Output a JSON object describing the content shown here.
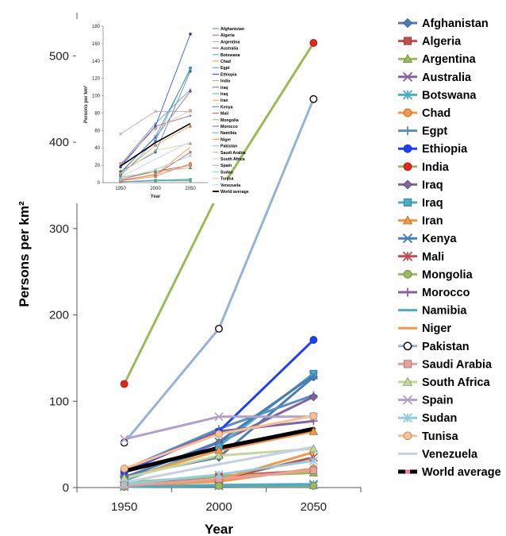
{
  "chart_data": {
    "type": "line",
    "xlabel": "Year",
    "ylabel": "Persons per km²",
    "x": [
      1950,
      2000,
      2050
    ],
    "xlim": [
      1925,
      2075
    ],
    "ylim": [
      0,
      550
    ],
    "yticks": [
      0,
      100,
      200,
      300,
      400,
      500
    ],
    "grid": false,
    "legend_position": "right",
    "series": [
      {
        "name": "Afghanistan",
        "values": [
          13,
          35,
          128
        ],
        "color": "#4a7db5",
        "marker": "diamond"
      },
      {
        "name": "Algeria",
        "values": [
          4,
          13,
          20
        ],
        "color": "#c0504d",
        "marker": "square"
      },
      {
        "name": "Argentina",
        "values": [
          6,
          13,
          17
        ],
        "color": "#9bbb59",
        "marker": "triangle"
      },
      {
        "name": "Australia",
        "values": [
          1,
          2,
          3
        ],
        "color": "#8064a2",
        "marker": "x"
      },
      {
        "name": "Botswana",
        "values": [
          1,
          3,
          4
        ],
        "color": "#4bacc6",
        "marker": "star"
      },
      {
        "name": "Chad",
        "values": [
          2,
          7,
          22
        ],
        "color": "#f79646",
        "marker": "circle"
      },
      {
        "name": "Egpt",
        "values": [
          21,
          68,
          107
        ],
        "color": "#5b8cc2",
        "marker": "plus"
      },
      {
        "name": "Ethiopia",
        "values": [
          18,
          65,
          171
        ],
        "color": "#1f3fff",
        "marker": "circle"
      },
      {
        "name": "India",
        "values": [
          120,
          342,
          515
        ],
        "color": "#9bbb59",
        "marker": "circle-red"
      },
      {
        "name": "Iraq",
        "values": [
          12,
          52,
          105
        ],
        "color": "#8064a2",
        "marker": "diamond"
      },
      {
        "name": "Iraq",
        "values": [
          8,
          48,
          132
        ],
        "color": "#4bacc6",
        "marker": "square"
      },
      {
        "name": "Iran",
        "values": [
          10,
          43,
          65
        ],
        "color": "#f79646",
        "marker": "triangle"
      },
      {
        "name": "Kenya",
        "values": [
          11,
          53,
          130
        ],
        "color": "#4a7db5",
        "marker": "x"
      },
      {
        "name": "Mali",
        "values": [
          3,
          9,
          35
        ],
        "color": "#c0504d",
        "marker": "star"
      },
      {
        "name": "Mongolia",
        "values": [
          1,
          2,
          2
        ],
        "color": "#9bbb59",
        "marker": "circle"
      },
      {
        "name": "Morocco",
        "values": [
          20,
          65,
          77
        ],
        "color": "#8064a2",
        "marker": "plus"
      },
      {
        "name": "Namibia",
        "values": [
          1,
          2,
          3
        ],
        "color": "#4bacc6",
        "marker": "none"
      },
      {
        "name": "Niger",
        "values": [
          2,
          9,
          41
        ],
        "color": "#f79646",
        "marker": "none"
      },
      {
        "name": "Pakistan",
        "values": [
          52,
          184,
          450
        ],
        "color": "#95b3d7",
        "marker": "circle-open"
      },
      {
        "name": "Saudi Arabia",
        "values": [
          2,
          10,
          20
        ],
        "color": "#e6a09e",
        "marker": "square"
      },
      {
        "name": "South Africa",
        "values": [
          11,
          37,
          45
        ],
        "color": "#c4d79b",
        "marker": "triangle"
      },
      {
        "name": "Spain",
        "values": [
          56,
          82,
          82
        ],
        "color": "#b2a1c7",
        "marker": "x"
      },
      {
        "name": "Sudan",
        "values": [
          4,
          15,
          31
        ],
        "color": "#92cddc",
        "marker": "star"
      },
      {
        "name": "Tunisa",
        "values": [
          22,
          62,
          83
        ],
        "color": "#fac090",
        "marker": "circle"
      },
      {
        "name": "Venezuela",
        "values": [
          6,
          27,
          47
        ],
        "color": "#c5d0e6",
        "marker": "none"
      },
      {
        "name": "World average",
        "values": [
          19,
          46,
          68
        ],
        "color": "#000000",
        "marker": "none"
      }
    ],
    "inset": {
      "ylabel": "Persons per km²",
      "xlabel": "Year",
      "ylim": [
        0,
        180
      ],
      "yticks": [
        0,
        20,
        40,
        60,
        80,
        100,
        120,
        140,
        160,
        180
      ]
    }
  }
}
